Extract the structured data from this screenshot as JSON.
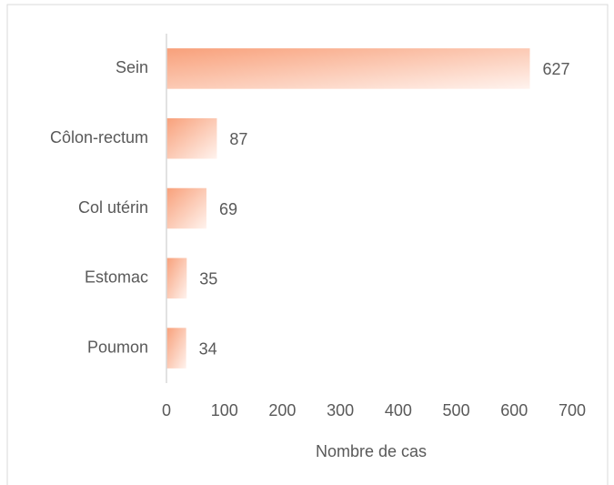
{
  "chart_data": {
    "type": "bar",
    "orientation": "horizontal",
    "categories": [
      "Sein",
      "Côlon-rectum",
      "Col utérin",
      "Estomac",
      "Poumon"
    ],
    "values": [
      627,
      87,
      69,
      35,
      34
    ],
    "color": "#f8a07a",
    "x_label": "Nombre de cas",
    "xlim": [
      0,
      700
    ],
    "xticks": [
      0,
      100,
      200,
      300,
      400,
      500,
      600,
      700
    ],
    "grid": false
  }
}
